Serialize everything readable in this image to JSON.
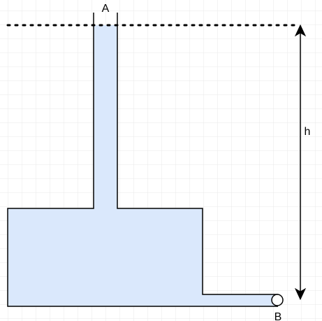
{
  "labels": {
    "top_opening": "A",
    "bottom_opening": "B",
    "height": "h"
  },
  "colors": {
    "background": "#ffffff",
    "grid": "#e6e6e6",
    "fluid": "#dae8fc",
    "outline": "#000000"
  }
}
